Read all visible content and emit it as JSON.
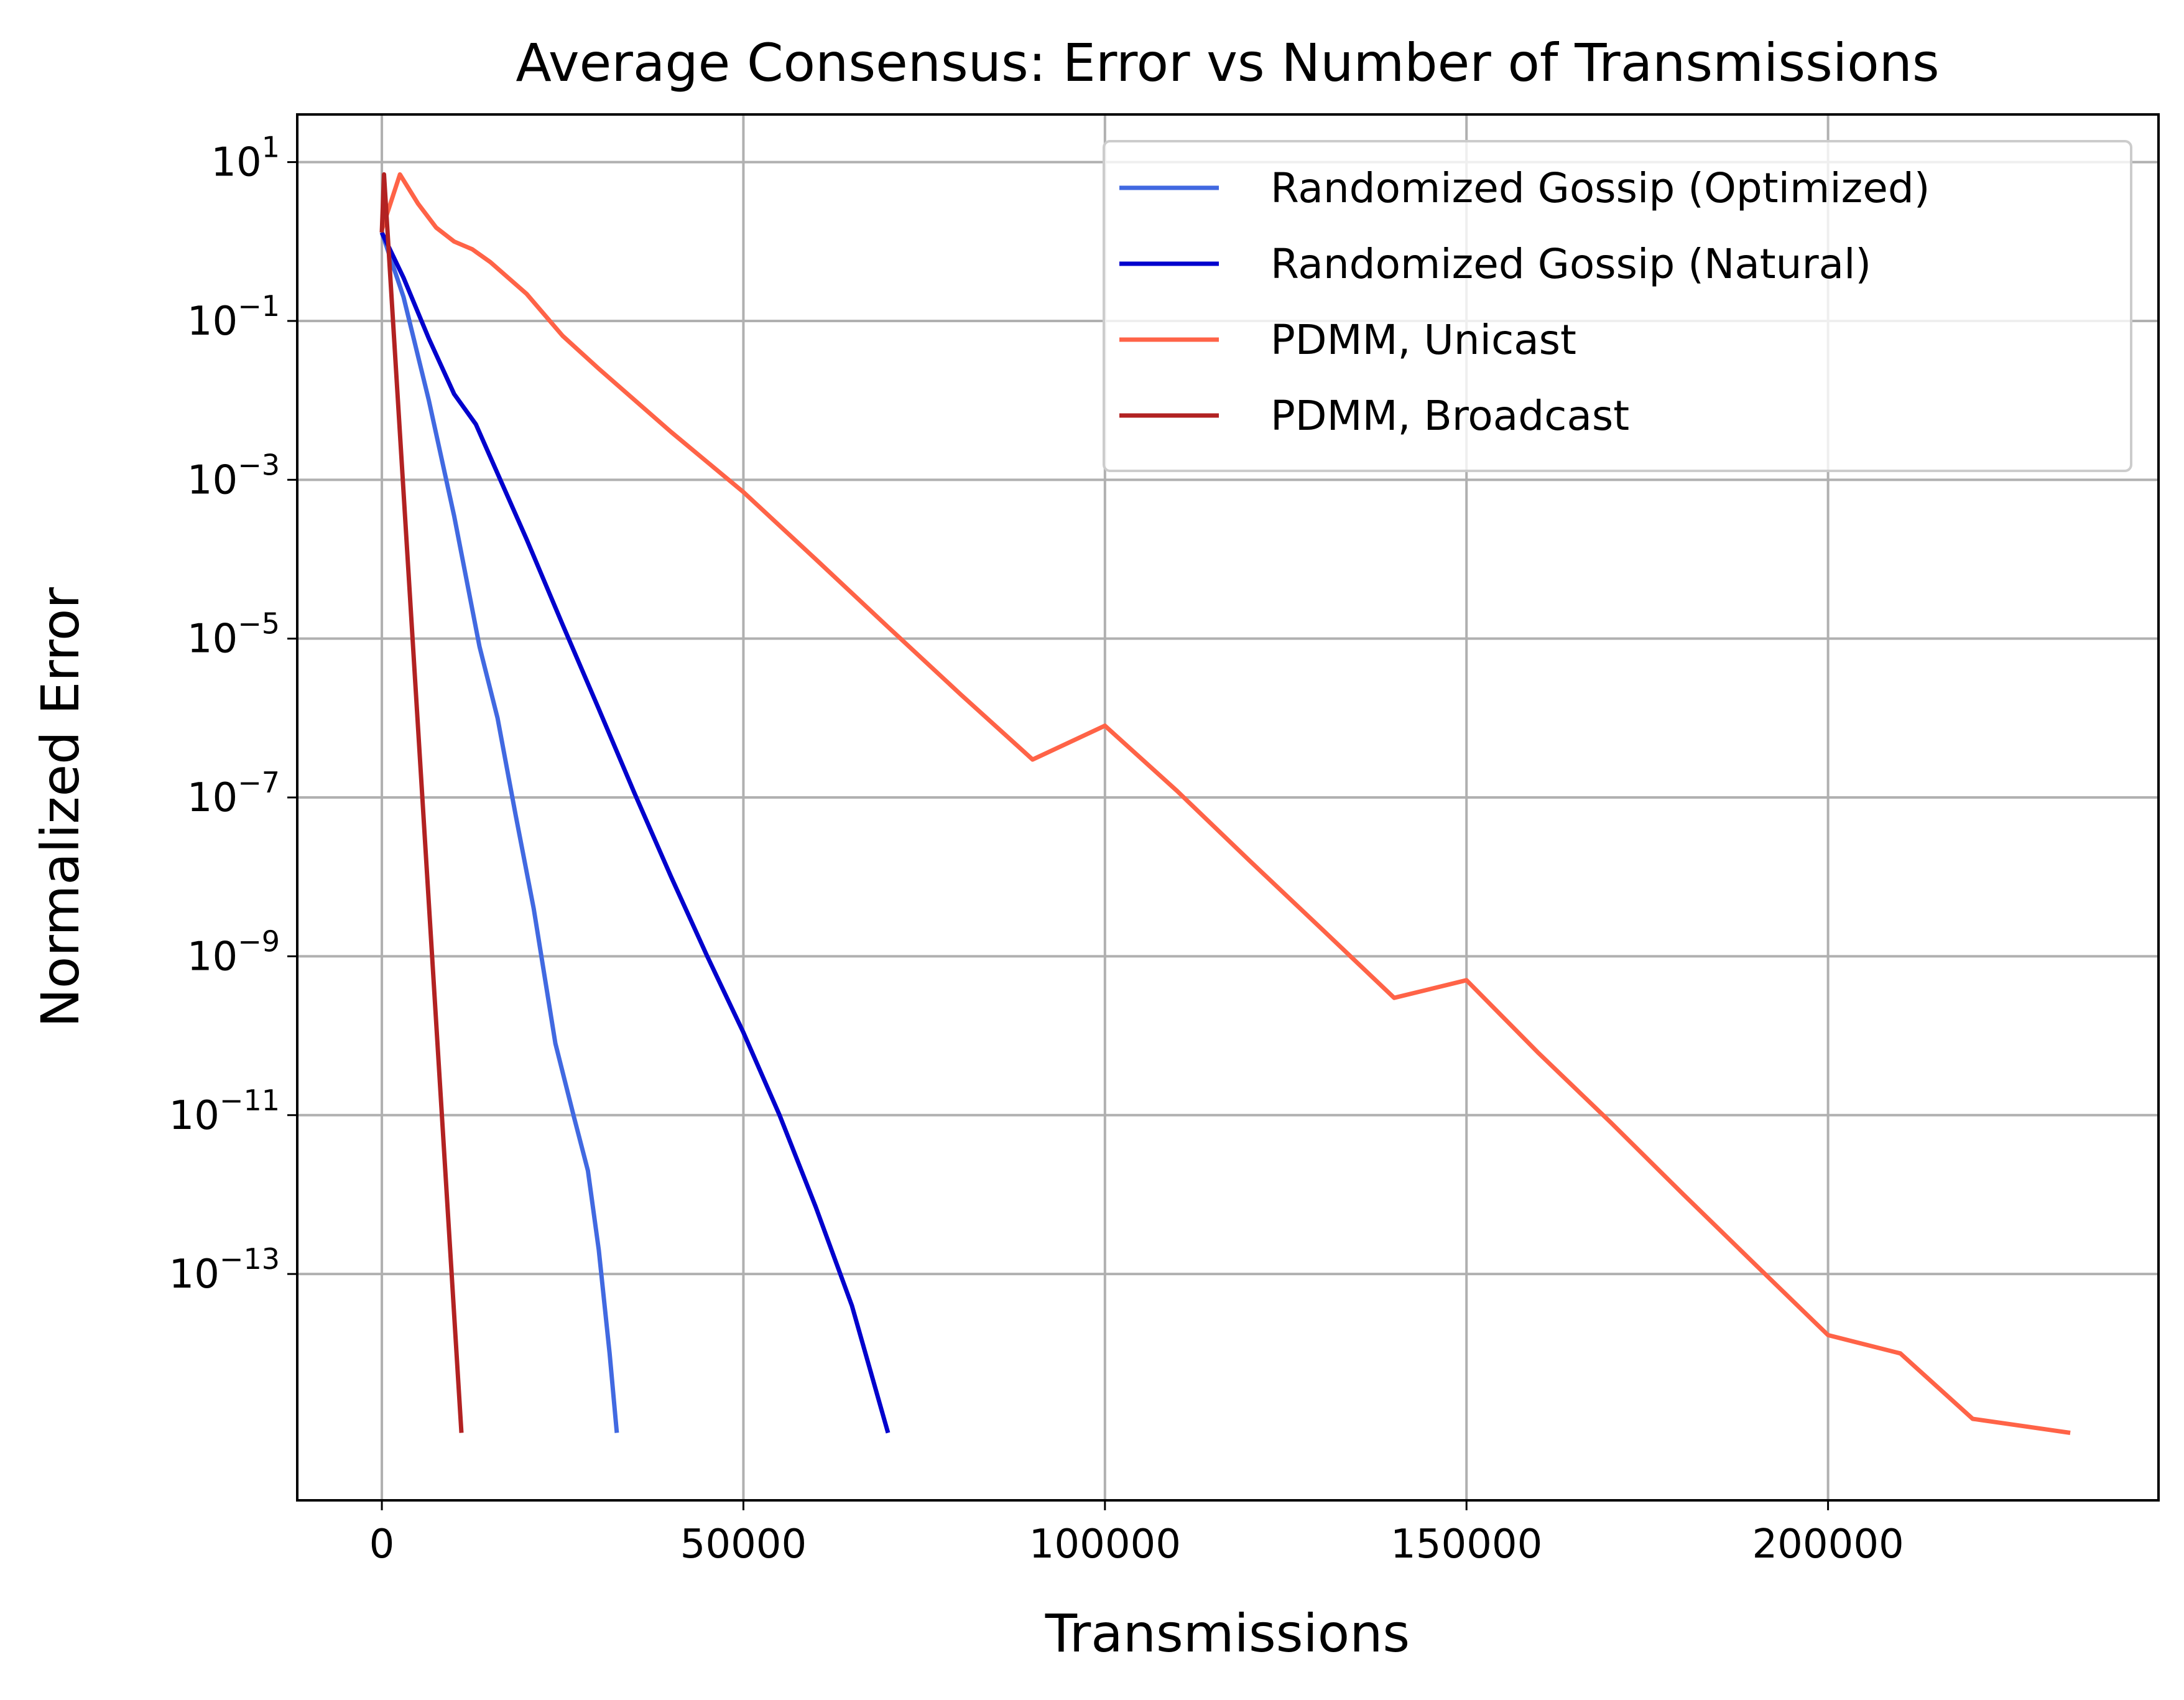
{
  "chart_data": {
    "type": "line",
    "title": "Average Consensus: Error vs Number of Transmissions",
    "xlabel": "Transmissions",
    "ylabel": "Normalized Error",
    "xlim": [
      -11700,
      245700
    ],
    "ylim_log10": [
      -15.85,
      1.6
    ],
    "yscale": "log",
    "grid": true,
    "legend_position": "top-right",
    "x_ticks": [
      {
        "value": 0,
        "label": "0"
      },
      {
        "value": 50000,
        "label": "50000"
      },
      {
        "value": 100000,
        "label": "100000"
      },
      {
        "value": 150000,
        "label": "150000"
      },
      {
        "value": 200000,
        "label": "200000"
      }
    ],
    "y_ticks": [
      {
        "exp": 1,
        "base": "10",
        "sup": "1"
      },
      {
        "exp": -1,
        "base": "10",
        "sup": "−1"
      },
      {
        "exp": -3,
        "base": "10",
        "sup": "−3"
      },
      {
        "exp": -5,
        "base": "10",
        "sup": "−5"
      },
      {
        "exp": -7,
        "base": "10",
        "sup": "−7"
      },
      {
        "exp": -9,
        "base": "10",
        "sup": "−9"
      },
      {
        "exp": -11,
        "base": "10",
        "sup": "−11"
      },
      {
        "exp": -13,
        "base": "10",
        "sup": "−13"
      }
    ],
    "series": [
      {
        "name": "Randomized Gossip (Optimized)",
        "color": "#4169e1",
        "points": [
          [
            0,
            1.3
          ],
          [
            3000,
            0.2
          ],
          [
            6500,
            0.01
          ],
          [
            10000,
            0.00035
          ],
          [
            13500,
            8e-06
          ],
          [
            16000,
            1e-06
          ],
          [
            18500,
            6e-08
          ],
          [
            21000,
            4e-09
          ],
          [
            24000,
            8e-11
          ],
          [
            26500,
            1e-11
          ],
          [
            28500,
            2e-12
          ],
          [
            30000,
            2e-13
          ],
          [
            31500,
            1e-14
          ],
          [
            32500,
            1e-15
          ]
        ]
      },
      {
        "name": "Randomized Gossip (Natural)",
        "color": "#0000cd",
        "points": [
          [
            0,
            1.3
          ],
          [
            3000,
            0.35
          ],
          [
            6500,
            0.06
          ],
          [
            10000,
            0.012
          ],
          [
            13000,
            0.005
          ],
          [
            16000,
            0.0012
          ],
          [
            20000,
            0.00018
          ],
          [
            25000,
            1.5e-05
          ],
          [
            30000,
            1.3e-06
          ],
          [
            35000,
            1.1e-07
          ],
          [
            40000,
            1e-08
          ],
          [
            45000,
            1e-09
          ],
          [
            50000,
            1.1e-10
          ],
          [
            55000,
            1e-11
          ],
          [
            60000,
            7e-13
          ],
          [
            65000,
            4e-14
          ],
          [
            70000,
            1e-15
          ]
        ]
      },
      {
        "name": "PDMM, Unicast",
        "color": "#ff6347",
        "points": [
          [
            0,
            1.4
          ],
          [
            2500,
            7
          ],
          [
            5000,
            3
          ],
          [
            7500,
            1.5
          ],
          [
            10000,
            1.0
          ],
          [
            12500,
            0.8
          ],
          [
            15000,
            0.55
          ],
          [
            20000,
            0.22
          ],
          [
            25000,
            0.065
          ],
          [
            30000,
            0.025
          ],
          [
            35000,
            0.01
          ],
          [
            40000,
            0.004
          ],
          [
            50000,
            0.0007
          ],
          [
            60000,
            0.0001
          ],
          [
            70000,
            1.4e-05
          ],
          [
            80000,
            2e-06
          ],
          [
            90000,
            3e-07
          ],
          [
            100000,
            8e-07
          ],
          [
            110000,
            1.2e-07
          ],
          [
            120000,
            1.6e-08
          ],
          [
            130000,
            2.2e-09
          ],
          [
            140000,
            3e-10
          ],
          [
            150000,
            5e-10
          ],
          [
            160000,
            6e-11
          ],
          [
            170000,
            8e-12
          ],
          [
            180000,
            1e-12
          ],
          [
            190000,
            1.3e-13
          ],
          [
            200000,
            1.7e-14
          ],
          [
            210000,
            1e-14
          ],
          [
            220000,
            1.5e-15
          ],
          [
            233500,
            1e-15
          ]
        ]
      },
      {
        "name": "PDMM, Broadcast",
        "color": "#b22222",
        "points": [
          [
            0,
            1.3
          ],
          [
            300,
            7
          ],
          [
            11000,
            1e-15
          ]
        ]
      }
    ]
  }
}
